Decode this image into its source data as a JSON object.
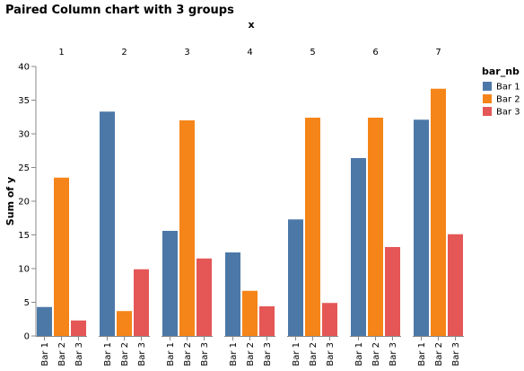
{
  "chart_data": {
    "type": "bar",
    "title": "Paired Column chart with 3 groups",
    "x_label": "x",
    "y_label": "Sum of y",
    "legend_title": "bar_nb",
    "categories": [
      "1",
      "2",
      "3",
      "4",
      "5",
      "6",
      "7"
    ],
    "series": [
      {
        "name": "Bar 1",
        "color": "#4c78a8",
        "values": [
          4.3,
          33.3,
          15.6,
          12.4,
          17.3,
          26.4,
          32.1
        ]
      },
      {
        "name": "Bar 2",
        "color": "#f58518",
        "values": [
          23.5,
          3.7,
          32,
          6.7,
          32.4,
          32.4,
          36.7
        ]
      },
      {
        "name": "Bar 3",
        "color": "#e45756",
        "values": [
          2.3,
          9.9,
          11.5,
          4.4,
          4.9,
          13.2,
          15.1
        ]
      }
    ],
    "ylim": [
      0,
      40
    ],
    "yticks": [
      0,
      5,
      10,
      15,
      20,
      25,
      30,
      35,
      40
    ],
    "grid": false,
    "legend": "right"
  }
}
